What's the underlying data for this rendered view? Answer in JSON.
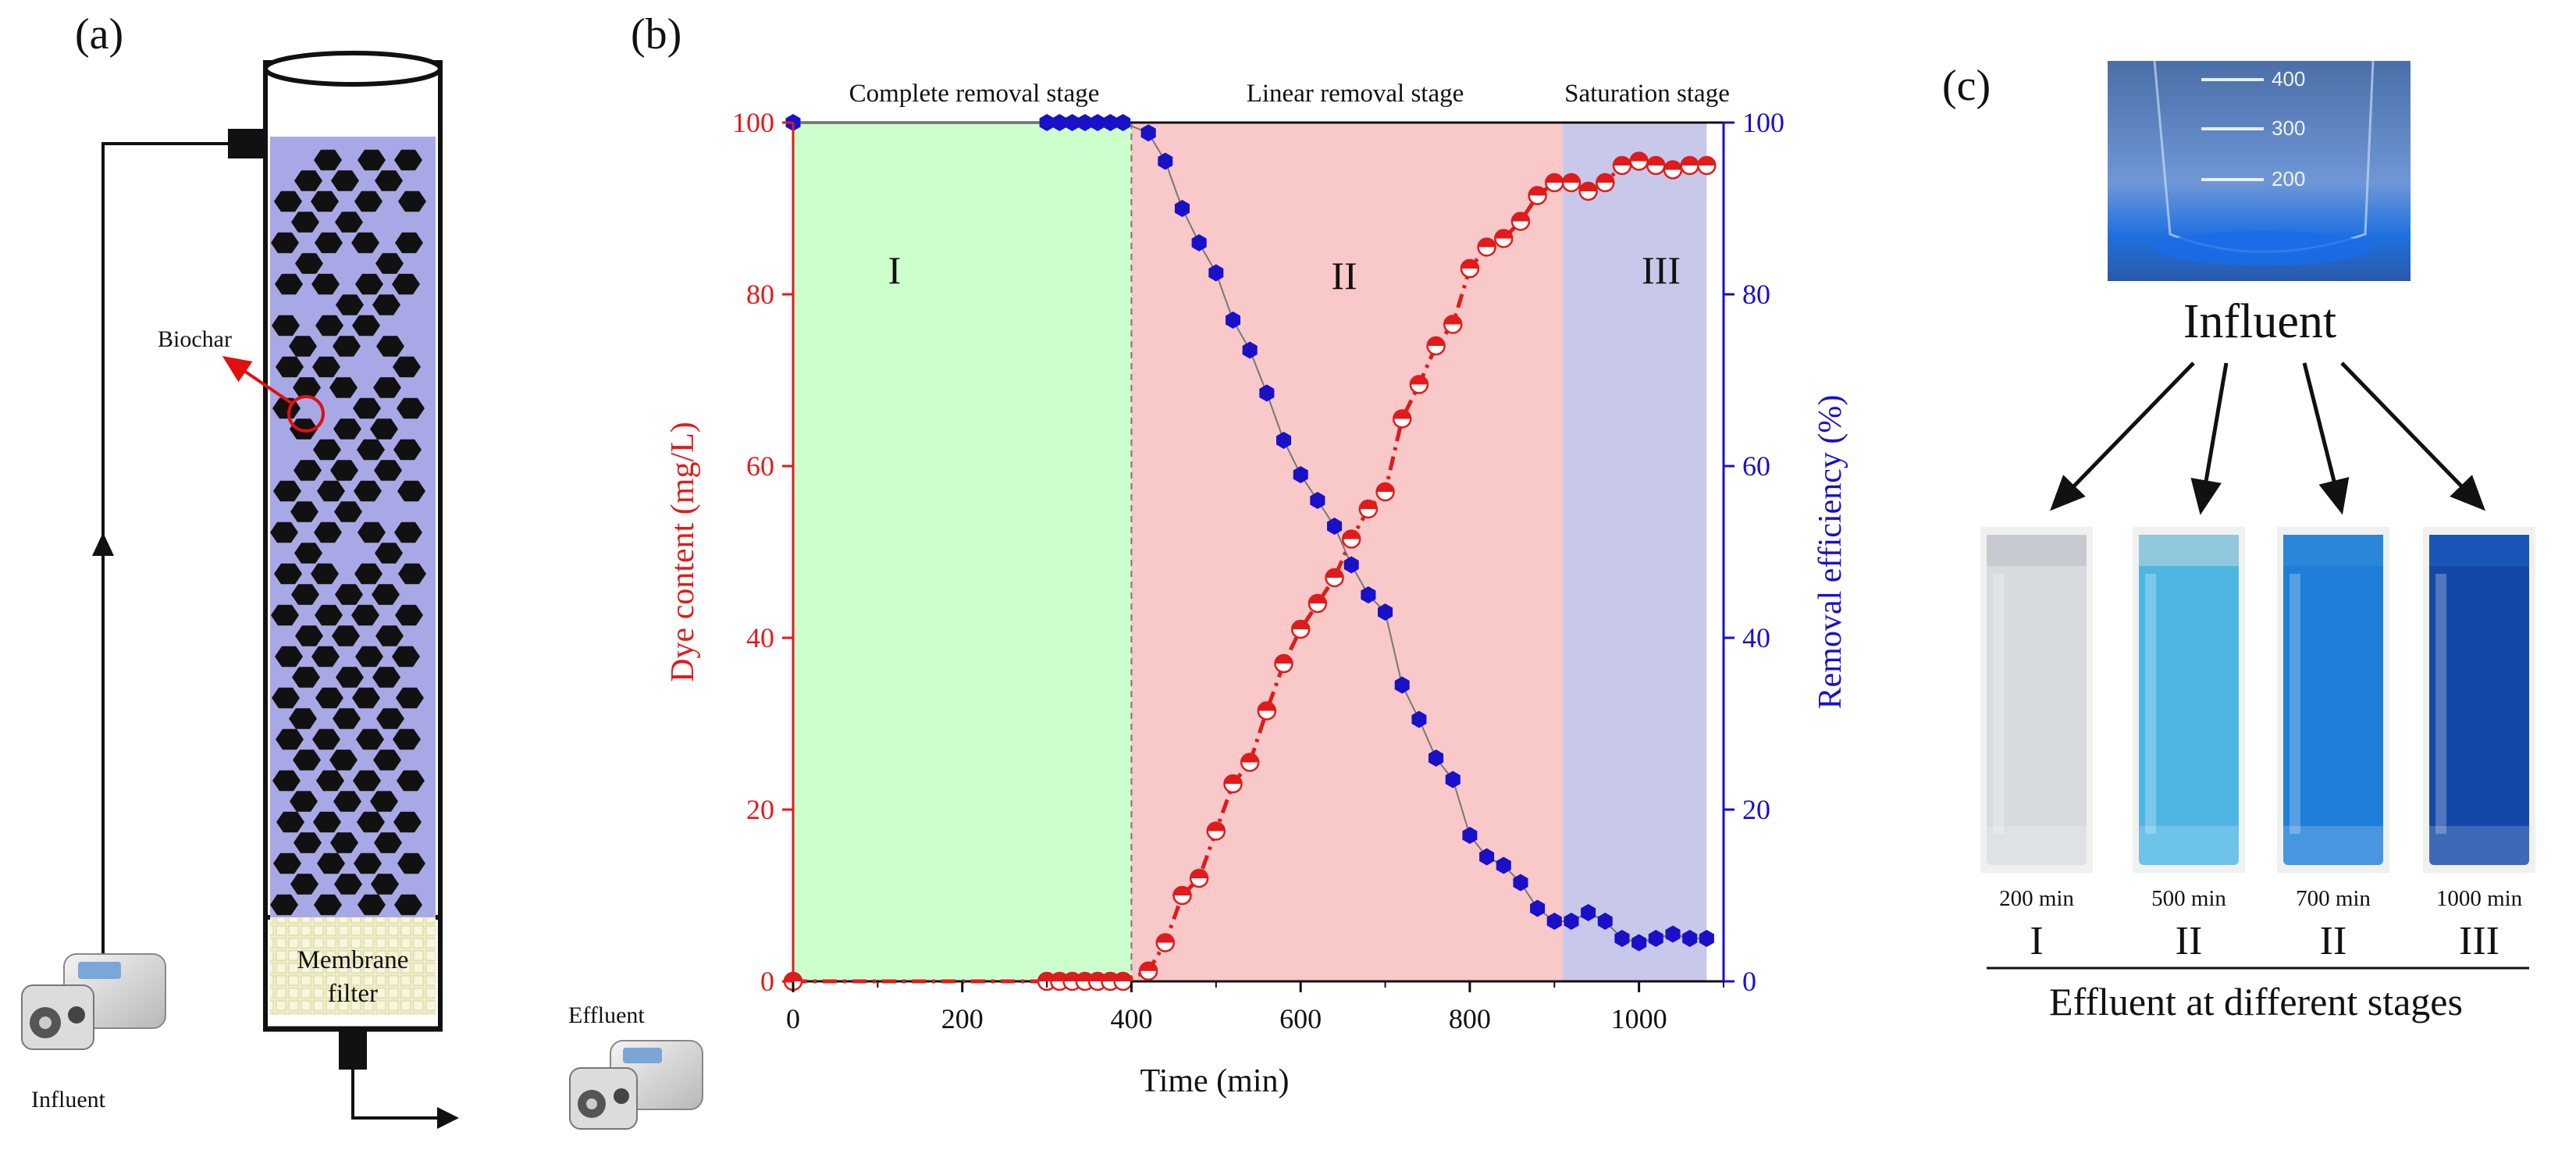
{
  "panels": {
    "a": "(a)",
    "b": "(b)",
    "c": "(c)"
  },
  "panel_a": {
    "biochar_label": "Biochar",
    "membrane_line1": "Membrane",
    "membrane_line2": "filter",
    "influent_label": "Influent",
    "effluent_label": "Effluent",
    "colors": {
      "column_fill": "#a8a8e6",
      "biochar": "#111111",
      "membrane": "#efedc8",
      "arrow": "#e01010"
    }
  },
  "chart_data": {
    "type": "scatter",
    "xlabel": "Time (min)",
    "ylabel_left": "Dye content (mg/L)",
    "ylabel_right": "Removal efficiency (%)",
    "xlim": [
      0,
      1100
    ],
    "ylim": [
      0,
      100
    ],
    "y2lim": [
      0,
      100
    ],
    "x_ticks": [
      0,
      200,
      400,
      600,
      800,
      1000
    ],
    "y_ticks": [
      0,
      20,
      40,
      60,
      80,
      100
    ],
    "y2_ticks": [
      0,
      20,
      40,
      60,
      80,
      100
    ],
    "stages": [
      {
        "name": "Complete removal stage",
        "roman": "I",
        "x_start": 0,
        "x_end": 400,
        "color": "#ccffcc"
      },
      {
        "name": "Linear removal stage",
        "roman": "II",
        "x_start": 400,
        "x_end": 910,
        "color": "#f9c8c8"
      },
      {
        "name": "Saturation stage",
        "roman": "III",
        "x_start": 910,
        "x_end": 1080,
        "color": "#c8c8ea"
      }
    ],
    "series": [
      {
        "name": "Dye content",
        "axis": "left",
        "color": "#e01b1b",
        "x": [
          0,
          300,
          315,
          330,
          345,
          360,
          375,
          390,
          420,
          440,
          460,
          480,
          500,
          520,
          540,
          560,
          580,
          600,
          620,
          640,
          660,
          680,
          700,
          720,
          740,
          760,
          780,
          800,
          820,
          840,
          860,
          880,
          900,
          920,
          940,
          960,
          980,
          1000,
          1020,
          1040,
          1060,
          1080
        ],
        "values": [
          0,
          0,
          0,
          0,
          0,
          0,
          0,
          0,
          1.2,
          4.5,
          10,
          12,
          17.5,
          23,
          25.5,
          31.5,
          37,
          41,
          44,
          47,
          51.5,
          55,
          57,
          65.5,
          69.5,
          74,
          76.5,
          83,
          85.5,
          86.5,
          88.5,
          91.5,
          93,
          93,
          92,
          93,
          95,
          95.5,
          95,
          94.5,
          95,
          95
        ]
      },
      {
        "name": "Removal efficiency",
        "axis": "right",
        "color": "#1a10c8",
        "x": [
          0,
          300,
          315,
          330,
          345,
          360,
          375,
          390,
          420,
          440,
          460,
          480,
          500,
          520,
          540,
          560,
          580,
          600,
          620,
          640,
          660,
          680,
          700,
          720,
          740,
          760,
          780,
          800,
          820,
          840,
          860,
          880,
          900,
          920,
          940,
          960,
          980,
          1000,
          1020,
          1040,
          1060,
          1080
        ],
        "values": [
          100,
          100,
          100,
          100,
          100,
          100,
          100,
          100,
          98.8,
          95.5,
          90,
          86,
          82.5,
          77,
          73.5,
          68.5,
          63,
          59,
          56,
          53,
          48.5,
          45,
          43,
          34.5,
          30.5,
          26,
          23.5,
          17,
          14.5,
          13.5,
          11.5,
          8.5,
          7,
          7,
          8,
          7,
          5,
          4.5,
          5,
          5.5,
          5,
          5
        ]
      }
    ]
  },
  "panel_c": {
    "influent_label": "Influent",
    "beaker_ticks": [
      "400",
      "300",
      "200"
    ],
    "tubes": [
      {
        "time": "200 min",
        "stage": "I",
        "color": "#d7dbe0",
        "top_color": "#c7cbd1"
      },
      {
        "time": "500 min",
        "stage": "II",
        "color": "#4fb6e3",
        "top_color": "#8fc8dd"
      },
      {
        "time": "700 min",
        "stage": "II",
        "color": "#1f7fd8",
        "top_color": "#2a86d8"
      },
      {
        "time": "1000 min",
        "stage": "III",
        "color": "#1448a8",
        "top_color": "#1a55b8"
      }
    ],
    "caption": "Effluent at different stages"
  }
}
